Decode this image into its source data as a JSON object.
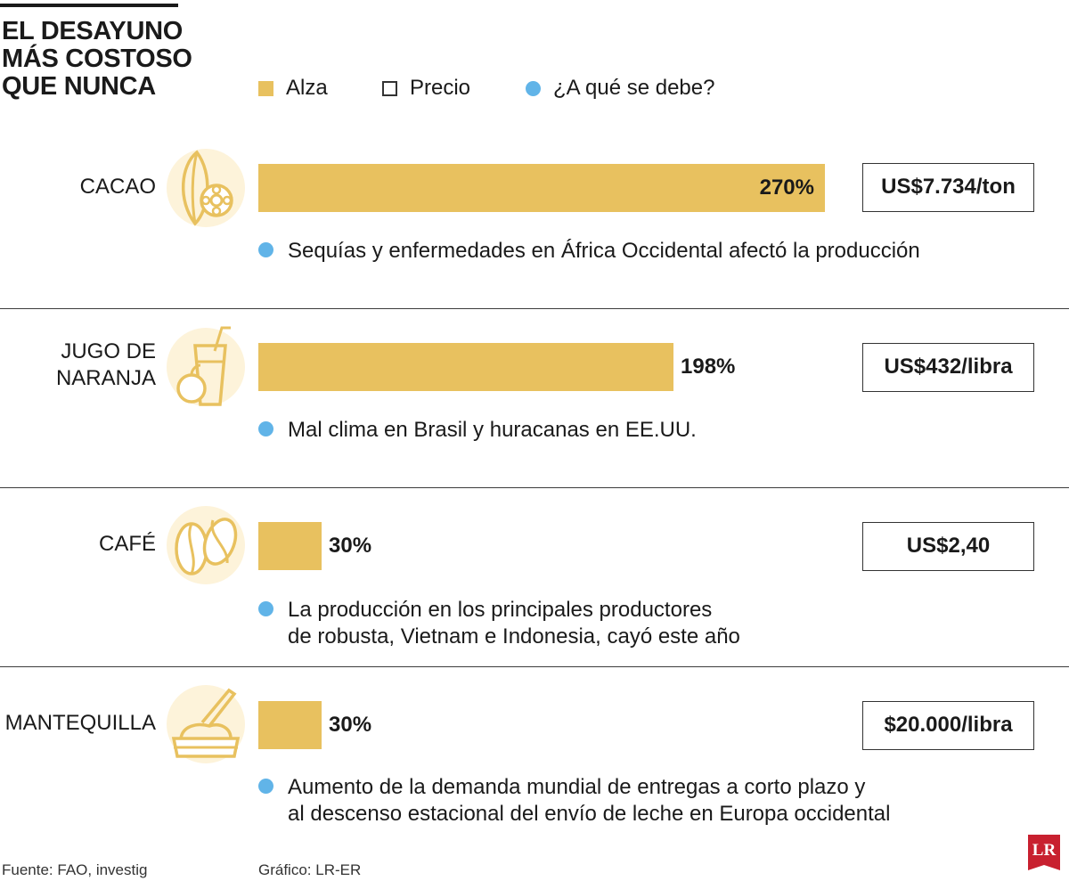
{
  "title_lines": [
    "EL DESAYUNO",
    "MÁS COSTOSO",
    "QUE NUNCA"
  ],
  "legend": {
    "alza": "Alza",
    "precio": "Precio",
    "reason": "¿A qué se debe?"
  },
  "colors": {
    "bar": "#e8c15f",
    "icon_bg": "#fdf3da",
    "reason_dot": "#61b4e8",
    "logo": "#c8202f"
  },
  "chart_data": {
    "type": "bar",
    "title": "EL DESAYUNO MÁS COSTOSO QUE NUNCA",
    "categories": [
      "CACAO",
      "JUGO DE NARANJA",
      "CAFÉ",
      "MANTEQUILLA"
    ],
    "values": [
      270,
      198,
      30,
      30
    ],
    "units": "%",
    "value_max": 270,
    "series_name": "Alza"
  },
  "items": [
    {
      "label_lines": [
        "CACAO"
      ],
      "icon": "cacao-icon",
      "alza": 270,
      "alza_label": "270%",
      "price": "US$7.734/ton",
      "reason_lines": [
        "Sequías y enfermedades en África Occidental afectó la producción"
      ]
    },
    {
      "label_lines": [
        "JUGO DE",
        "NARANJA"
      ],
      "icon": "orange-juice-icon",
      "alza": 198,
      "alza_label": "198%",
      "price": "US$432/libra",
      "reason_lines": [
        "Mal clima en Brasil y huracanas en EE.UU."
      ]
    },
    {
      "label_lines": [
        "CAFÉ"
      ],
      "icon": "coffee-beans-icon",
      "alza": 30,
      "alza_label": "30%",
      "price": "US$2,40",
      "reason_lines": [
        "La producción en los principales productores",
        "de robusta, Vietnam e Indonesia, cayó este año"
      ]
    },
    {
      "label_lines": [
        "MANTEQUILLA"
      ],
      "icon": "butter-icon",
      "alza": 30,
      "alza_label": "30%",
      "price": "$20.000/libra",
      "reason_lines": [
        "Aumento de la demanda mundial de entregas a corto plazo y",
        "al descenso estacional del envío de leche en Europa occidental"
      ]
    }
  ],
  "footer": {
    "source": "Fuente: FAO, investig",
    "credit": "Gráfico: LR-ER",
    "logo": "LR"
  }
}
